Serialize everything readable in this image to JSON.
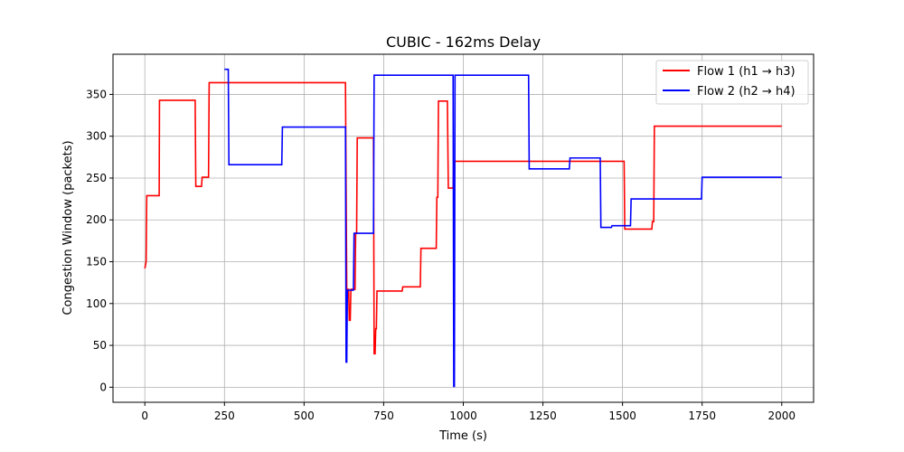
{
  "chart_data": {
    "type": "line",
    "title": "CUBIC - 162ms Delay",
    "xlabel": "Time (s)",
    "ylabel": "Congestion Window (packets)",
    "xlim": [
      -100,
      2100
    ],
    "ylim": [
      -18,
      398
    ],
    "xticks": [
      0,
      250,
      500,
      750,
      1000,
      1250,
      1500,
      1750,
      2000
    ],
    "yticks": [
      0,
      50,
      100,
      150,
      200,
      250,
      300,
      350
    ],
    "grid": true,
    "legend_position": "upper-right",
    "series": [
      {
        "name": "Flow 1 (h1 → h3)",
        "color": "#ff0000",
        "step": true,
        "points": [
          [
            0,
            142
          ],
          [
            4,
            150
          ],
          [
            6,
            229
          ],
          [
            45,
            229
          ],
          [
            46,
            343
          ],
          [
            158,
            343
          ],
          [
            160,
            240
          ],
          [
            178,
            240
          ],
          [
            180,
            251
          ],
          [
            200,
            251
          ],
          [
            202,
            364
          ],
          [
            630,
            364
          ],
          [
            634,
            117
          ],
          [
            640,
            117
          ],
          [
            642,
            80
          ],
          [
            645,
            80
          ],
          [
            647,
            117
          ],
          [
            660,
            117
          ],
          [
            662,
            184
          ],
          [
            665,
            184
          ],
          [
            667,
            298
          ],
          [
            718,
            298
          ],
          [
            720,
            40
          ],
          [
            723,
            40
          ],
          [
            725,
            70
          ],
          [
            727,
            70
          ],
          [
            729,
            115
          ],
          [
            808,
            115
          ],
          [
            810,
            120
          ],
          [
            865,
            120
          ],
          [
            867,
            166
          ],
          [
            915,
            166
          ],
          [
            917,
            227
          ],
          [
            920,
            227
          ],
          [
            922,
            342
          ],
          [
            950,
            342
          ],
          [
            953,
            238
          ],
          [
            968,
            238
          ],
          [
            970,
            270
          ],
          [
            1505,
            270
          ],
          [
            1507,
            189
          ],
          [
            1592,
            189
          ],
          [
            1594,
            198
          ],
          [
            1598,
            198
          ],
          [
            1600,
            312
          ],
          [
            2000,
            312
          ]
        ]
      },
      {
        "name": "Flow 2 (h2 → h4)",
        "color": "#0000ff",
        "step": true,
        "points": [
          [
            250,
            380
          ],
          [
            262,
            380
          ],
          [
            264,
            266
          ],
          [
            430,
            266
          ],
          [
            432,
            311
          ],
          [
            630,
            311
          ],
          [
            632,
            30
          ],
          [
            634,
            30
          ],
          [
            636,
            116
          ],
          [
            655,
            116
          ],
          [
            657,
            184
          ],
          [
            718,
            184
          ],
          [
            720,
            373
          ],
          [
            968,
            373
          ],
          [
            970,
            1
          ],
          [
            972,
            1
          ],
          [
            974,
            373
          ],
          [
            1205,
            373
          ],
          [
            1207,
            261
          ],
          [
            1333,
            261
          ],
          [
            1335,
            274
          ],
          [
            1430,
            274
          ],
          [
            1432,
            191
          ],
          [
            1465,
            191
          ],
          [
            1467,
            193
          ],
          [
            1525,
            193
          ],
          [
            1527,
            225
          ],
          [
            1748,
            225
          ],
          [
            1750,
            251
          ],
          [
            2000,
            251
          ]
        ]
      }
    ]
  }
}
